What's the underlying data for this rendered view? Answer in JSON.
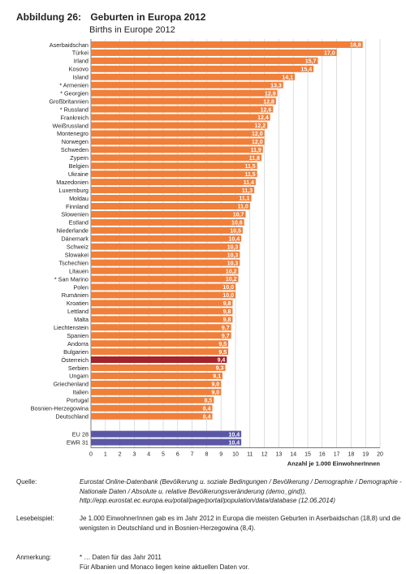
{
  "header": {
    "figure_number": "Abbildung 26:",
    "title": "Geburten in Europa 2012",
    "subtitle": "Births in Europe 2012"
  },
  "colors": {
    "default_bar": "#f07f3a",
    "highlight_bar": "#a3222b",
    "aggregate_bar": "#5b57a6",
    "grid": "#c8c8c8"
  },
  "chart_data": {
    "type": "bar",
    "orientation": "horizontal",
    "title": "Geburten in Europa 2012",
    "subtitle": "Births in Europe 2012",
    "xlabel": "Anzahl je 1.000 EinwohnerInnen",
    "ylabel": "",
    "xlim": [
      0,
      20
    ],
    "xticks": [
      0,
      1,
      2,
      3,
      4,
      5,
      6,
      7,
      8,
      9,
      10,
      11,
      12,
      13,
      14,
      15,
      16,
      17,
      18,
      19,
      20
    ],
    "grid": true,
    "categories": [
      "Aserbaidschan",
      "Türkei",
      "Irland",
      "Kosovo",
      "Island",
      "* Armenien",
      "* Georgien",
      "Großbritannien",
      "* Russland",
      "Frankreich",
      "Weißrussland",
      "Montenegro",
      "Norwegen",
      "Schweden",
      "Zypern",
      "Belgien",
      "Ukraine",
      "Mazedonien",
      "Luxemburg",
      "Moldau",
      "Finnland",
      "Slowenien",
      "Estland",
      "Niederlande",
      "Dänemark",
      "Schweiz",
      "Slowakei",
      "Tschechien",
      "Litauen",
      "* San Marino",
      "Polen",
      "Rumänien",
      "Kroatien",
      "Lettland",
      "Malta",
      "Liechtenstein",
      "Spanien",
      "Andorra",
      "Bulgarien",
      "Österreich",
      "Serbien",
      "Ungarn",
      "Griechenland",
      "Italien",
      "Portugal",
      "Bosnien-Herzegowina",
      "Deutschland"
    ],
    "values": [
      18.8,
      17.0,
      15.7,
      15.4,
      14.1,
      13.3,
      12.9,
      12.8,
      12.6,
      12.4,
      12.2,
      12.0,
      12.0,
      11.9,
      11.8,
      11.5,
      11.5,
      11.4,
      11.3,
      11.1,
      11.0,
      10.7,
      10.6,
      10.5,
      10.4,
      10.3,
      10.3,
      10.3,
      10.2,
      10.2,
      10.0,
      10.0,
      9.8,
      9.8,
      9.8,
      9.7,
      9.7,
      9.5,
      9.5,
      9.4,
      9.3,
      9.1,
      9.0,
      9.0,
      8.5,
      8.4,
      8.4
    ],
    "value_labels": [
      "18,8",
      "17,0",
      "15,7",
      "15,4",
      "14,1",
      "13,3",
      "12,9",
      "12,8",
      "12,6",
      "12,4",
      "12,2",
      "12,0",
      "12,0",
      "11,9",
      "11,8",
      "11,5",
      "11,5",
      "11,4",
      "11,3",
      "11,1",
      "11,0",
      "10,7",
      "10,6",
      "10,5",
      "10,4",
      "10,3",
      "10,3",
      "10,3",
      "10,2",
      "10,2",
      "10,0",
      "10,0",
      "9,8",
      "9,8",
      "9,8",
      "9,7",
      "9,7",
      "9,5",
      "9,5",
      "9,4",
      "9,3",
      "9,1",
      "9,0",
      "9,0",
      "8,5",
      "8,4",
      "8,4"
    ],
    "highlight": "Österreich",
    "aggregates": {
      "categories": [
        "EU 28",
        "EWR 31"
      ],
      "values": [
        10.4,
        10.4
      ],
      "value_labels": [
        "10,4",
        "10,4"
      ]
    }
  },
  "notes": {
    "source_label": "Quelle:",
    "source_text": "Eurostat Online-Datenbank (Bevölkerung u. soziale Bedingungen / Bevölkerung / Demographie / Demographie - Nationale Daten / Absolute u. relative Bevölkerungsveränderung (demo_gind)), http://epp.eurostat.ec.europa.eu/potal/page/portal/population/data/database (12.06.2014)",
    "reading_label": "Lesebeispiel:",
    "reading_text": "Je 1.000 EinwohnerInnen gab es im Jahr 2012 in Europa die meisten Geburten in Aserbaidschan (18,8) und die wenigsten in Deutschland und in Bosnien-Herzegowina (8,4).",
    "remark_label": "Anmerkung:",
    "remark_line1": "* … Daten für das Jahr 2011",
    "remark_line2": "Für Albanien und Monaco liegen keine aktuellen Daten vor."
  }
}
